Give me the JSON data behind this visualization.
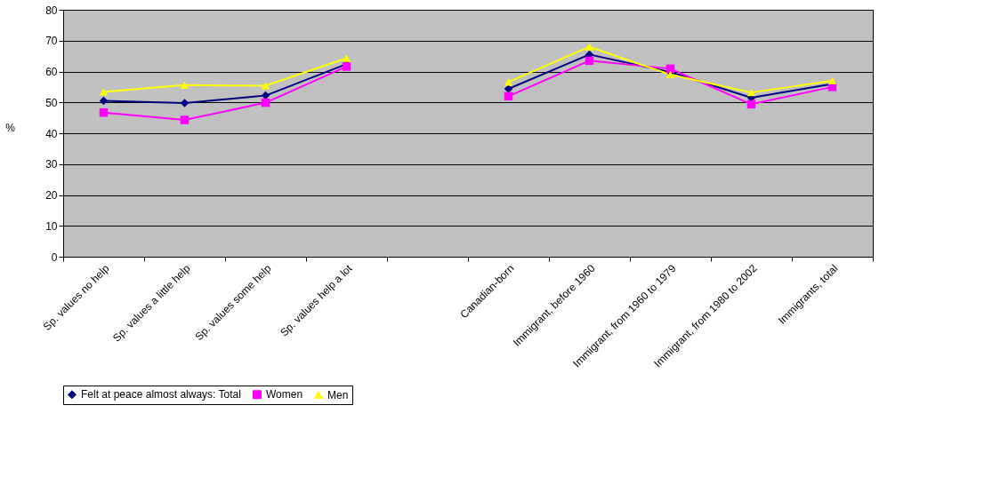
{
  "chart_data": {
    "type": "line",
    "ylabel": "%",
    "categories": [
      "Sp. values no help",
      "Sp. values a little help",
      "Sp. values some help",
      "Sp. values help a lot",
      null,
      "Canadian-born",
      "Immigrant, before 1960",
      "Immigrant, from 1960 to 1979",
      "Immigrant, from 1980 to 2002",
      "Immigrants, total"
    ],
    "series": [
      {
        "name": "Felt at peace almost always: Total",
        "color": "#000080",
        "marker": "diamond",
        "values": [
          50.5,
          49.8,
          52.2,
          62.4,
          null,
          54.4,
          65.5,
          59.8,
          51.5,
          56
        ]
      },
      {
        "name": "Women",
        "color": "#ff00ff",
        "marker": "square",
        "values": [
          46.7,
          44.3,
          49.9,
          61.6,
          null,
          52,
          63.5,
          60.9,
          49.4,
          55
        ]
      },
      {
        "name": "Men",
        "color": "#ffff00",
        "marker": "triangle",
        "values": [
          53.4,
          55.6,
          55.4,
          64.3,
          null,
          56.6,
          68,
          59,
          53.2,
          57
        ]
      }
    ],
    "ylim": [
      0,
      80
    ],
    "yticks": [
      0,
      10,
      20,
      30,
      40,
      50,
      60,
      70,
      80
    ],
    "grid": "y",
    "legend": "bottom",
    "line_style": "solid"
  }
}
